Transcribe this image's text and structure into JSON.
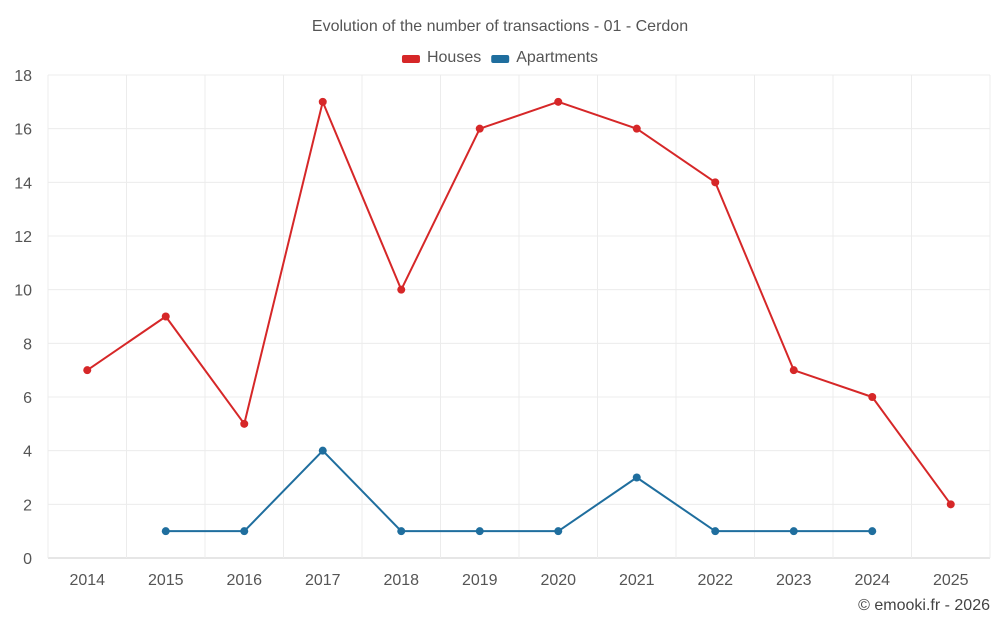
{
  "chart_data": {
    "type": "line",
    "title": "Evolution of the number of transactions - 01 - Cerdon",
    "categories": [
      "2014",
      "2015",
      "2016",
      "2017",
      "2018",
      "2019",
      "2020",
      "2021",
      "2022",
      "2023",
      "2024",
      "2025"
    ],
    "y_ticks": [
      "0",
      "2",
      "4",
      "6",
      "8",
      "10",
      "12",
      "14",
      "16",
      "18"
    ],
    "ylim": [
      0,
      18
    ],
    "grid": true,
    "legend_position": "top-center",
    "xlabel": "",
    "ylabel": "",
    "series": [
      {
        "name": "Houses",
        "color": "#d62728",
        "values": [
          7,
          9,
          5,
          17,
          10,
          16,
          17,
          16,
          14,
          7,
          6,
          2
        ]
      },
      {
        "name": "Apartments",
        "color": "#1f6e9e",
        "values": [
          null,
          1,
          1,
          4,
          1,
          1,
          1,
          3,
          1,
          1,
          1,
          null
        ]
      }
    ]
  },
  "footer": {
    "credit": "© emooki.fr - 2026"
  }
}
